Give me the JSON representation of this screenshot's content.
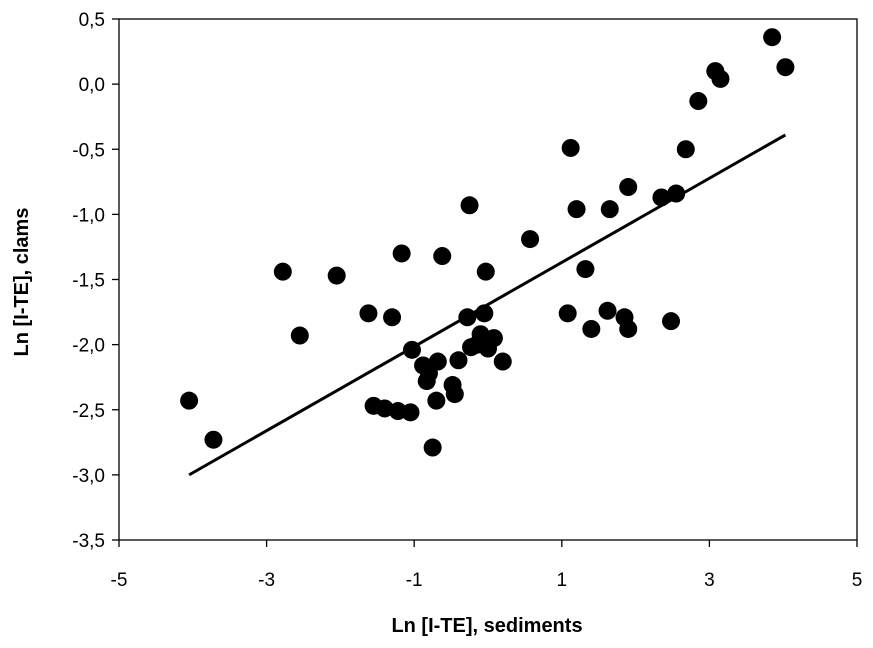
{
  "chart_data": {
    "type": "scatter",
    "title": "",
    "xlabel": "Ln [I-TE], sediments",
    "ylabel": "Ln [I-TE], clams",
    "xlim": [
      -5,
      5
    ],
    "ylim": [
      -3.5,
      0.5
    ],
    "x_ticks": [
      -5,
      -3,
      -1,
      1,
      3,
      5
    ],
    "x_tick_labels": [
      "-5",
      "-3",
      "-1",
      "1",
      "3",
      "5"
    ],
    "y_ticks": [
      0.5,
      0.0,
      -0.5,
      -1.0,
      -1.5,
      -2.0,
      -2.5,
      -3.0,
      -3.5
    ],
    "y_tick_labels": [
      "0,5",
      "0,0",
      "-0,5",
      "-1,0",
      "-1,5",
      "-2,0",
      "-2,5",
      "-3,0",
      "-3,5"
    ],
    "grid": false,
    "legend": "none",
    "marker_color": "#000000",
    "points": [
      {
        "x": -4.05,
        "y": -2.43
      },
      {
        "x": -3.72,
        "y": -2.73
      },
      {
        "x": -2.78,
        "y": -1.44
      },
      {
        "x": -2.55,
        "y": -1.93
      },
      {
        "x": -2.05,
        "y": -1.47
      },
      {
        "x": -1.62,
        "y": -1.76
      },
      {
        "x": -1.55,
        "y": -2.47
      },
      {
        "x": -1.4,
        "y": -2.49
      },
      {
        "x": -1.3,
        "y": -1.79
      },
      {
        "x": -1.22,
        "y": -2.51
      },
      {
        "x": -1.17,
        "y": -1.3
      },
      {
        "x": -1.05,
        "y": -2.52
      },
      {
        "x": -1.03,
        "y": -2.04
      },
      {
        "x": -0.88,
        "y": -2.16
      },
      {
        "x": -0.83,
        "y": -2.28
      },
      {
        "x": -0.8,
        "y": -2.22
      },
      {
        "x": -0.75,
        "y": -2.79
      },
      {
        "x": -0.7,
        "y": -2.43
      },
      {
        "x": -0.68,
        "y": -2.13
      },
      {
        "x": -0.62,
        "y": -1.32
      },
      {
        "x": -0.48,
        "y": -2.31
      },
      {
        "x": -0.45,
        "y": -2.38
      },
      {
        "x": -0.4,
        "y": -2.12
      },
      {
        "x": -0.28,
        "y": -1.79
      },
      {
        "x": -0.25,
        "y": -0.93
      },
      {
        "x": -0.23,
        "y": -2.02
      },
      {
        "x": -0.15,
        "y": -2.0
      },
      {
        "x": -0.1,
        "y": -1.92
      },
      {
        "x": -0.05,
        "y": -1.76
      },
      {
        "x": -0.03,
        "y": -1.44
      },
      {
        "x": 0.0,
        "y": -2.03
      },
      {
        "x": 0.08,
        "y": -1.95
      },
      {
        "x": 0.2,
        "y": -2.13
      },
      {
        "x": 0.57,
        "y": -1.19
      },
      {
        "x": 1.08,
        "y": -1.76
      },
      {
        "x": 1.12,
        "y": -0.49
      },
      {
        "x": 1.2,
        "y": -0.96
      },
      {
        "x": 1.32,
        "y": -1.42
      },
      {
        "x": 1.4,
        "y": -1.88
      },
      {
        "x": 1.62,
        "y": -1.74
      },
      {
        "x": 1.65,
        "y": -0.96
      },
      {
        "x": 1.85,
        "y": -1.79
      },
      {
        "x": 1.9,
        "y": -1.88
      },
      {
        "x": 1.9,
        "y": -0.79
      },
      {
        "x": 2.35,
        "y": -0.87
      },
      {
        "x": 2.48,
        "y": -1.82
      },
      {
        "x": 2.55,
        "y": -0.84
      },
      {
        "x": 2.68,
        "y": -0.5
      },
      {
        "x": 2.85,
        "y": -0.13
      },
      {
        "x": 3.08,
        "y": 0.1
      },
      {
        "x": 3.15,
        "y": 0.04
      },
      {
        "x": 3.85,
        "y": 0.36
      },
      {
        "x": 4.03,
        "y": 0.13
      }
    ],
    "trendline": {
      "x": [
        -4.05,
        4.03
      ],
      "y": [
        -3.0,
        -0.39
      ]
    }
  }
}
